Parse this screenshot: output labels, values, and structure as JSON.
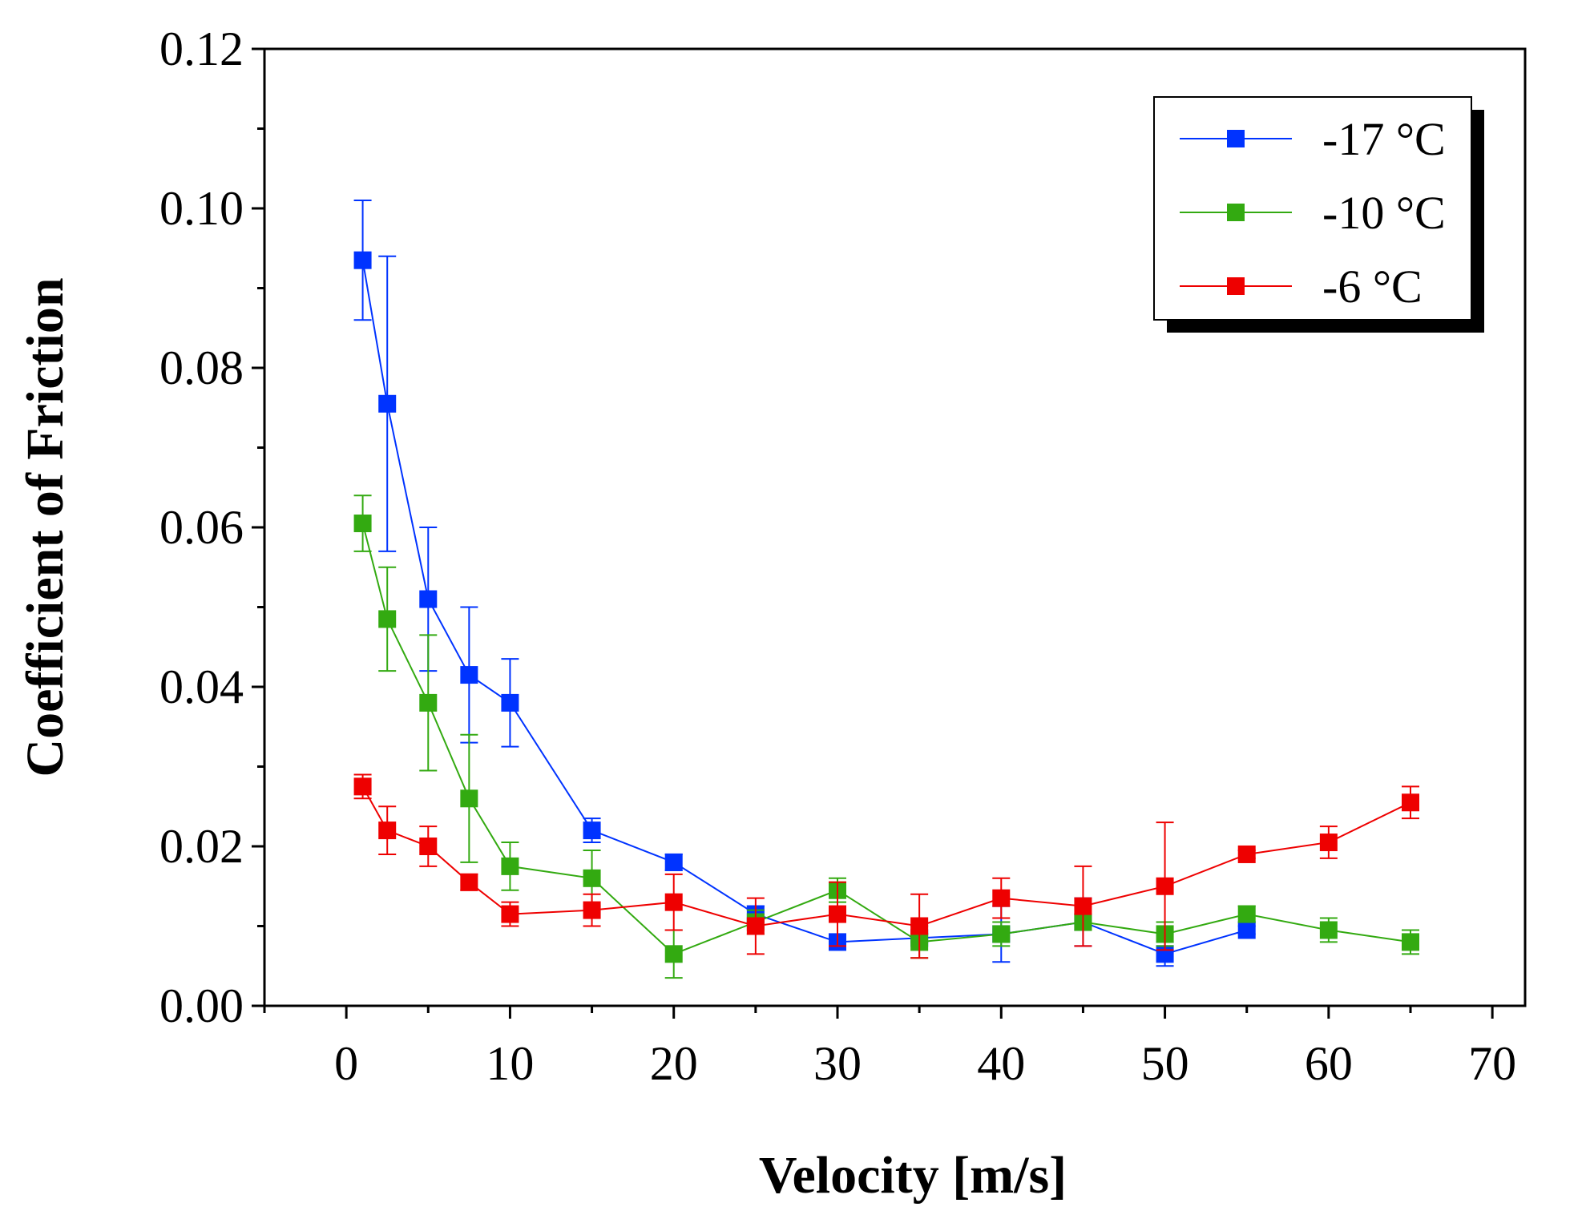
{
  "chart_data": {
    "type": "line",
    "title": "",
    "xlabel": "Velocity [m/s]",
    "ylabel": "Coefficient of Friction",
    "xlim": [
      -5,
      72
    ],
    "ylim": [
      0,
      0.12
    ],
    "xticks": [
      0,
      10,
      20,
      30,
      40,
      50,
      60,
      70
    ],
    "xtick_labels": [
      "0",
      "10",
      "20",
      "30",
      "40",
      "50",
      "60",
      "70"
    ],
    "yticks": [
      0,
      0.02,
      0.04,
      0.06,
      0.08,
      0.1,
      0.12
    ],
    "ytick_labels": [
      "0.00",
      "0.02",
      "0.04",
      "0.06",
      "0.08",
      "0.10",
      "0.12"
    ],
    "grid": false,
    "legend_position": "top-right",
    "series": [
      {
        "name": "-17 °C",
        "color": "#0033ff",
        "x": [
          1,
          2.5,
          5,
          7.5,
          10,
          15,
          20,
          25,
          30,
          35,
          40,
          45,
          50,
          55
        ],
        "y": [
          0.0935,
          0.0755,
          0.051,
          0.0415,
          0.038,
          0.022,
          0.018,
          0.0115,
          0.008,
          0.0085,
          0.009,
          0.0105,
          0.0065,
          0.0095
        ],
        "err": [
          0.0075,
          0.0185,
          0.009,
          0.0085,
          0.0055,
          0.0015,
          0.001,
          0.001,
          0.0005,
          0.0005,
          0.0035,
          0.003,
          0.0015,
          0.0005
        ]
      },
      {
        "name": "-10 °C",
        "color": "#33aa11",
        "x": [
          1,
          2.5,
          5,
          7.5,
          10,
          15,
          20,
          25,
          30,
          35,
          40,
          45,
          50,
          55,
          60,
          65
        ],
        "y": [
          0.0605,
          0.0485,
          0.038,
          0.026,
          0.0175,
          0.016,
          0.0065,
          0.0105,
          0.0145,
          0.008,
          0.009,
          0.0105,
          0.009,
          0.0115,
          0.0095,
          0.008
        ],
        "err": [
          0.0035,
          0.0065,
          0.0085,
          0.008,
          0.003,
          0.0035,
          0.003,
          0.0015,
          0.0015,
          0.002,
          0.0015,
          0.001,
          0.0015,
          0.001,
          0.0015,
          0.0015
        ]
      },
      {
        "name": "-6 °C",
        "color": "#ee0000",
        "x": [
          1,
          2.5,
          5,
          7.5,
          10,
          15,
          20,
          25,
          30,
          35,
          40,
          45,
          50,
          55,
          60,
          65
        ],
        "y": [
          0.0275,
          0.022,
          0.02,
          0.0155,
          0.0115,
          0.012,
          0.013,
          0.01,
          0.0115,
          0.01,
          0.0135,
          0.0125,
          0.015,
          0.019,
          0.0205,
          0.0255
        ],
        "err": [
          0.0015,
          0.003,
          0.0025,
          0.001,
          0.0015,
          0.002,
          0.0035,
          0.0035,
          0.004,
          0.004,
          0.0025,
          0.005,
          0.008,
          0.0005,
          0.002,
          0.002
        ]
      }
    ]
  }
}
